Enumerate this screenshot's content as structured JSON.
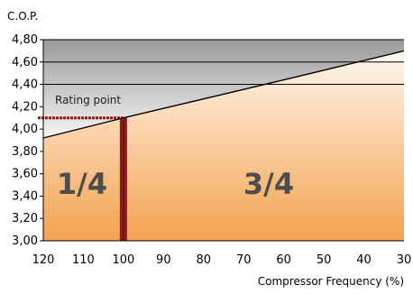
{
  "chart_data": {
    "type": "line",
    "ylabel": "C.O.P.",
    "xlabel": "Compressor Frequency (%)",
    "x_reversed": true,
    "xlim": [
      120,
      30
    ],
    "ylim": [
      3.0,
      4.8
    ],
    "x_ticks": [
      "120",
      "110",
      "100",
      "90",
      "80",
      "70",
      "60",
      "50",
      "40",
      "30"
    ],
    "y_ticks": [
      "3,00",
      "3,20",
      "3,40",
      "3,60",
      "3,80",
      "4,00",
      "4,20",
      "4,40",
      "4,60",
      "4,80"
    ],
    "grid_y_values": [
      4.4,
      4.6,
      4.8
    ],
    "series": [
      {
        "x": [
          120,
          100,
          60,
          30
        ],
        "y": [
          3.92,
          4.1,
          4.44,
          4.7
        ],
        "color": "#000000"
      }
    ],
    "rating_point": {
      "label": "Rating point",
      "x": 100,
      "y": 4.1,
      "color": "#8b1a1a"
    },
    "regions": [
      {
        "label": "1/4"
      },
      {
        "label": "3/4"
      }
    ],
    "colors": {
      "upper_gradient_top": "#9a9a9a",
      "upper_gradient_bottom": "#f5f5f5",
      "lower_gradient_top": "#fff7ef",
      "lower_gradient_bottom": "#f3a24f",
      "region_label": "#4d4d4d",
      "axis": "#000000"
    }
  }
}
